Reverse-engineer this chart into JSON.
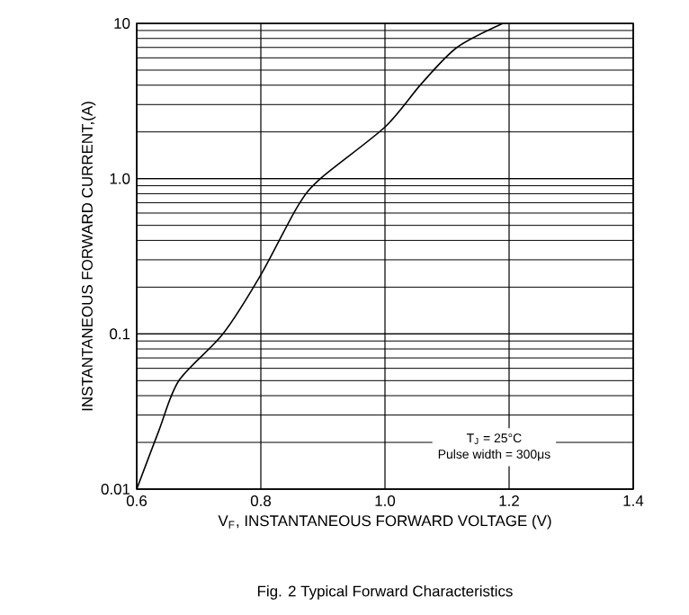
{
  "chart_data": {
    "type": "line",
    "title": "Fig. 2 Typical Forward Characteristics",
    "xlabel": "V$_{F}$, INSTANTANEOUS FORWARD VOLTAGE (V)",
    "ylabel": "INSTANTANEOUS FORWARD CURRENT,(A)",
    "x": [
      0.6,
      0.636,
      0.668,
      0.739,
      0.8,
      0.859,
      0.896,
      1.0,
      1.059,
      1.116,
      1.19
    ],
    "series": [
      {
        "color": "#000000",
        "values": [
          0.01,
          0.024,
          0.05,
          0.1,
          0.24,
          0.66,
          1.0,
          2.15,
          4.1,
          7.0,
          10
        ]
      }
    ],
    "xlim": [
      0.6,
      1.4
    ],
    "ylim": [
      0.01,
      10
    ],
    "log": "y",
    "xticks": [
      0.6,
      0.8,
      {
        "value": 1.0,
        "label": "1.0"
      },
      1.2,
      1.4
    ],
    "yticks": [
      0.01,
      0.1,
      {
        "value": 1,
        "label": "1.0"
      },
      10
    ],
    "grid": true,
    "marker": "none",
    "line_style": "solid",
    "annotations": [
      "T$_{J}$ = 25°C",
      "Pulse width = 300μs"
    ]
  }
}
